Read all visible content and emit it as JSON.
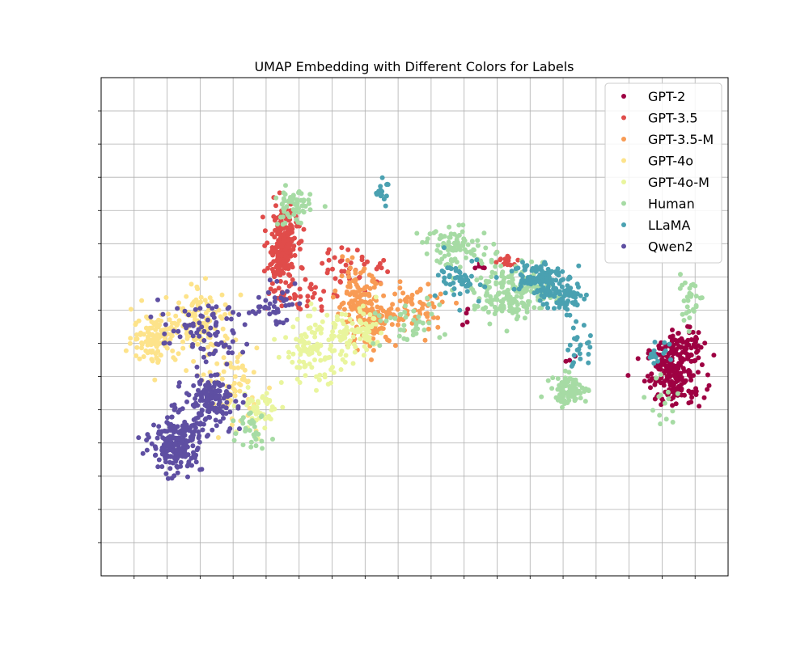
{
  "chart_data": {
    "type": "scatter",
    "title": "UMAP Embedding with Different Colors for Labels",
    "xlabel": "",
    "ylabel": "",
    "xlim": [
      0,
      19
    ],
    "ylim": [
      0,
      15
    ],
    "grid": true,
    "tick_labels_shown": false,
    "legend_position": "top-right",
    "series": [
      {
        "name": "GPT-2",
        "color": "#9e0142",
        "clusters": [
          {
            "center": [
              17.4,
              6.1
            ],
            "spread": [
              0.8,
              0.85
            ],
            "count": 200
          },
          {
            "center": [
              17.6,
              7.0
            ],
            "spread": [
              0.45,
              0.5
            ],
            "count": 50
          },
          {
            "center": [
              11.5,
              9.2
            ],
            "spread": [
              0.3,
              0.3
            ],
            "count": 6
          },
          {
            "center": [
              11.0,
              7.8
            ],
            "spread": [
              0.25,
              0.3
            ],
            "count": 4
          },
          {
            "center": [
              14.2,
              6.5
            ],
            "spread": [
              0.15,
              0.2
            ],
            "count": 3
          }
        ]
      },
      {
        "name": "GPT-3.5",
        "color": "#e04c4a",
        "clusters": [
          {
            "center": [
              5.5,
              9.9
            ],
            "spread": [
              0.4,
              1.0
            ],
            "count": 230
          },
          {
            "center": [
              6.0,
              8.4
            ],
            "spread": [
              0.8,
              0.5
            ],
            "count": 40
          },
          {
            "center": [
              7.7,
              9.3
            ],
            "spread": [
              1.0,
              0.5
            ],
            "count": 40
          },
          {
            "center": [
              12.3,
              9.5
            ],
            "spread": [
              0.4,
              0.3
            ],
            "count": 15
          }
        ]
      },
      {
        "name": "GPT-3.5-M",
        "color": "#f89b54",
        "clusters": [
          {
            "center": [
              7.8,
              8.2
            ],
            "spread": [
              0.6,
              0.9
            ],
            "count": 120
          },
          {
            "center": [
              8.3,
              7.6
            ],
            "spread": [
              0.6,
              0.6
            ],
            "count": 80
          },
          {
            "center": [
              9.6,
              8.1
            ],
            "spread": [
              1.0,
              0.7
            ],
            "count": 60
          }
        ]
      },
      {
        "name": "GPT-4o",
        "color": "#fde38a",
        "clusters": [
          {
            "center": [
              1.6,
              7.2
            ],
            "spread": [
              0.6,
              0.7
            ],
            "count": 110
          },
          {
            "center": [
              3.0,
              7.6
            ],
            "spread": [
              0.9,
              0.9
            ],
            "count": 120
          },
          {
            "center": [
              3.9,
              5.7
            ],
            "spread": [
              0.8,
              1.0
            ],
            "count": 80
          }
        ]
      },
      {
        "name": "GPT-4o-M",
        "color": "#e9f59d",
        "clusters": [
          {
            "center": [
              6.5,
              6.8
            ],
            "spread": [
              0.9,
              0.9
            ],
            "count": 120
          },
          {
            "center": [
              7.8,
              7.3
            ],
            "spread": [
              0.8,
              0.6
            ],
            "count": 70
          },
          {
            "center": [
              4.8,
              5.0
            ],
            "spread": [
              0.6,
              0.7
            ],
            "count": 45
          }
        ]
      },
      {
        "name": "Human",
        "color": "#a6dba4",
        "clusters": [
          {
            "center": [
              5.8,
              11.1
            ],
            "spread": [
              0.5,
              0.5
            ],
            "count": 60
          },
          {
            "center": [
              10.8,
              9.9
            ],
            "spread": [
              1.0,
              0.5
            ],
            "count": 90
          },
          {
            "center": [
              12.5,
              8.5
            ],
            "spread": [
              1.1,
              0.7
            ],
            "count": 180
          },
          {
            "center": [
              14.2,
              5.6
            ],
            "spread": [
              0.5,
              0.4
            ],
            "count": 85
          },
          {
            "center": [
              9.2,
              7.6
            ],
            "spread": [
              1.0,
              0.6
            ],
            "count": 40
          },
          {
            "center": [
              17.8,
              8.3
            ],
            "spread": [
              0.4,
              0.6
            ],
            "count": 30
          },
          {
            "center": [
              17.1,
              5.3
            ],
            "spread": [
              0.5,
              0.8
            ],
            "count": 15
          },
          {
            "center": [
              4.6,
              4.5
            ],
            "spread": [
              0.4,
              0.6
            ],
            "count": 30
          }
        ]
      },
      {
        "name": "LLaMA",
        "color": "#4aa1b1",
        "clusters": [
          {
            "center": [
              13.2,
              9.0
            ],
            "spread": [
              0.7,
              0.5
            ],
            "count": 110
          },
          {
            "center": [
              14.0,
              8.4
            ],
            "spread": [
              0.6,
              0.4
            ],
            "count": 70
          },
          {
            "center": [
              11.0,
              8.9
            ],
            "spread": [
              0.7,
              0.6
            ],
            "count": 50
          },
          {
            "center": [
              14.5,
              6.8
            ],
            "spread": [
              0.3,
              0.6
            ],
            "count": 25
          },
          {
            "center": [
              8.5,
              11.6
            ],
            "spread": [
              0.15,
              0.3
            ],
            "count": 18
          },
          {
            "center": [
              16.8,
              6.7
            ],
            "spread": [
              0.4,
              0.3
            ],
            "count": 15
          }
        ]
      },
      {
        "name": "Qwen2",
        "color": "#5e4fa2",
        "clusters": [
          {
            "center": [
              2.3,
              4.0
            ],
            "spread": [
              0.7,
              0.8
            ],
            "count": 230
          },
          {
            "center": [
              3.3,
              5.3
            ],
            "spread": [
              0.7,
              0.7
            ],
            "count": 140
          },
          {
            "center": [
              3.1,
              7.3
            ],
            "spread": [
              1.2,
              0.8
            ],
            "count": 80
          },
          {
            "center": [
              5.2,
              8.2
            ],
            "spread": [
              0.6,
              0.5
            ],
            "count": 40
          }
        ]
      }
    ]
  }
}
